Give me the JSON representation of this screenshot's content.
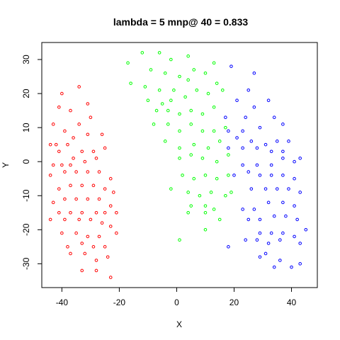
{
  "chart_data": {
    "type": "scatter",
    "title": "lambda = 5 mnp@ 40 = 0.833",
    "xlabel": "X",
    "ylabel": "Y",
    "xlim": [
      -47,
      49
    ],
    "ylim": [
      -37,
      35
    ],
    "xticks": [
      -40,
      -20,
      0,
      20,
      40
    ],
    "yticks": [
      -30,
      -20,
      -10,
      0,
      10,
      20,
      30
    ],
    "grid": false,
    "series": [
      {
        "color": "#ff0000",
        "points": [
          [
            -40,
            20
          ],
          [
            -34,
            22
          ],
          [
            -41,
            16
          ],
          [
            -37,
            15
          ],
          [
            -31,
            17
          ],
          [
            -43,
            11
          ],
          [
            -39,
            9
          ],
          [
            -34,
            11
          ],
          [
            -30,
            13
          ],
          [
            -42,
            5
          ],
          [
            -38,
            5
          ],
          [
            -36,
            7
          ],
          [
            -31,
            8
          ],
          [
            -26,
            8
          ],
          [
            -44,
            5
          ],
          [
            -41,
            3
          ],
          [
            -36,
            1
          ],
          [
            -33,
            3
          ],
          [
            -29,
            3
          ],
          [
            -25,
            4
          ],
          [
            -43,
            -1
          ],
          [
            -40,
            -1
          ],
          [
            -37,
            -1
          ],
          [
            -32,
            0
          ],
          [
            -28,
            1
          ],
          [
            -44,
            -4
          ],
          [
            -39,
            -3
          ],
          [
            -35,
            -3
          ],
          [
            -31,
            -3
          ],
          [
            -27,
            -3
          ],
          [
            -23,
            -5
          ],
          [
            -41,
            -8
          ],
          [
            -37,
            -7
          ],
          [
            -33,
            -7
          ],
          [
            -29,
            -7
          ],
          [
            -25,
            -8
          ],
          [
            -22,
            -9
          ],
          [
            -43,
            -12
          ],
          [
            -39,
            -11
          ],
          [
            -35,
            -11
          ],
          [
            -31,
            -11
          ],
          [
            -27,
            -11
          ],
          [
            -23,
            -13
          ],
          [
            -41,
            -15
          ],
          [
            -37,
            -15
          ],
          [
            -33,
            -15
          ],
          [
            -28,
            -15
          ],
          [
            -25,
            -15
          ],
          [
            -21,
            -15
          ],
          [
            -44,
            -17
          ],
          [
            -39,
            -17
          ],
          [
            -34,
            -17
          ],
          [
            -30,
            -17
          ],
          [
            -26,
            -18
          ],
          [
            -23,
            -19
          ],
          [
            -40,
            -21
          ],
          [
            -35,
            -21
          ],
          [
            -31,
            -22
          ],
          [
            -27,
            -22
          ],
          [
            -21,
            -21
          ],
          [
            -38,
            -25
          ],
          [
            -33,
            -24
          ],
          [
            -29,
            -25
          ],
          [
            -25,
            -25
          ],
          [
            -37,
            -27
          ],
          [
            -32,
            -27
          ],
          [
            -28,
            -29
          ],
          [
            -24,
            -28
          ],
          [
            -33,
            -32
          ],
          [
            -28,
            -32
          ],
          [
            -23,
            -34
          ]
        ]
      },
      {
        "color": "#00ff00",
        "points": [
          [
            -12,
            32
          ],
          [
            -6,
            32
          ],
          [
            -2,
            30
          ],
          [
            4,
            31
          ],
          [
            -17,
            29
          ],
          [
            -9,
            27
          ],
          [
            -4,
            26
          ],
          [
            1,
            25
          ],
          [
            6,
            27
          ],
          [
            13,
            29
          ],
          [
            -16,
            23
          ],
          [
            -11,
            22
          ],
          [
            -6,
            21
          ],
          [
            -1,
            21
          ],
          [
            4,
            24
          ],
          [
            10,
            26
          ],
          [
            14,
            23
          ],
          [
            -10,
            18
          ],
          [
            -5,
            17
          ],
          [
            -2,
            18
          ],
          [
            3,
            19
          ],
          [
            7,
            21
          ],
          [
            11,
            20
          ],
          [
            16,
            21
          ],
          [
            -7,
            15
          ],
          [
            -3,
            15
          ],
          [
            1,
            14
          ],
          [
            5,
            15
          ],
          [
            9,
            14
          ],
          [
            13,
            16
          ],
          [
            -8,
            11
          ],
          [
            -3,
            11
          ],
          [
            1,
            9
          ],
          [
            5,
            11
          ],
          [
            9,
            9
          ],
          [
            13,
            9
          ],
          [
            17,
            10
          ],
          [
            -4,
            6
          ],
          [
            1,
            4
          ],
          [
            6,
            5
          ],
          [
            11,
            4
          ],
          [
            15,
            6
          ],
          [
            1,
            1
          ],
          [
            5,
            2
          ],
          [
            9,
            1
          ],
          [
            14,
            0
          ],
          [
            18,
            2
          ],
          [
            2,
            -4
          ],
          [
            6,
            -5
          ],
          [
            10,
            -4
          ],
          [
            14,
            -5
          ],
          [
            18,
            -4
          ],
          [
            -2,
            -8
          ],
          [
            4,
            -9
          ],
          [
            8,
            -10
          ],
          [
            12,
            -9
          ],
          [
            17,
            -10
          ],
          [
            5,
            -13
          ],
          [
            10,
            -13
          ],
          [
            13,
            -14
          ],
          [
            19,
            -9
          ],
          [
            4,
            -15
          ],
          [
            10,
            -15
          ],
          [
            15,
            -17
          ],
          [
            10,
            -20
          ],
          [
            1,
            -23
          ]
        ]
      },
      {
        "color": "#0000ff",
        "points": [
          [
            19,
            28
          ],
          [
            27,
            26
          ],
          [
            25,
            21
          ],
          [
            32,
            18
          ],
          [
            21,
            18
          ],
          [
            27,
            16
          ],
          [
            24,
            13
          ],
          [
            17,
            13
          ],
          [
            18,
            9
          ],
          [
            23,
            9
          ],
          [
            29,
            10
          ],
          [
            34,
            13
          ],
          [
            37,
            11
          ],
          [
            21,
            7
          ],
          [
            26,
            6
          ],
          [
            31,
            5
          ],
          [
            35,
            6
          ],
          [
            39,
            6
          ],
          [
            18,
            4
          ],
          [
            23,
            4
          ],
          [
            28,
            4
          ],
          [
            33,
            3
          ],
          [
            37,
            3
          ],
          [
            23,
            -1
          ],
          [
            28,
            -1
          ],
          [
            33,
            -1
          ],
          [
            37,
            1
          ],
          [
            41,
            0
          ],
          [
            43,
            1
          ],
          [
            20,
            -4
          ],
          [
            25,
            -3
          ],
          [
            29,
            -4
          ],
          [
            33,
            -4
          ],
          [
            37,
            -4
          ],
          [
            41,
            -5
          ],
          [
            26,
            -8
          ],
          [
            31,
            -8
          ],
          [
            35,
            -8
          ],
          [
            39,
            -8
          ],
          [
            43,
            -9
          ],
          [
            23,
            -14
          ],
          [
            27,
            -14
          ],
          [
            32,
            -12
          ],
          [
            37,
            -12
          ],
          [
            41,
            -13
          ],
          [
            25,
            -17
          ],
          [
            29,
            -17
          ],
          [
            34,
            -16
          ],
          [
            38,
            -16
          ],
          [
            42,
            -17
          ],
          [
            29,
            -21
          ],
          [
            33,
            -21
          ],
          [
            37,
            -21
          ],
          [
            41,
            -22
          ],
          [
            45,
            -20
          ],
          [
            24,
            -23
          ],
          [
            28,
            -23
          ],
          [
            32,
            -24
          ],
          [
            36,
            -23
          ],
          [
            43,
            -24
          ],
          [
            18,
            -25
          ],
          [
            31,
            -27
          ],
          [
            29,
            -28
          ],
          [
            36,
            -29
          ],
          [
            34,
            -31
          ],
          [
            40,
            -31
          ],
          [
            43,
            -30
          ]
        ]
      }
    ]
  }
}
